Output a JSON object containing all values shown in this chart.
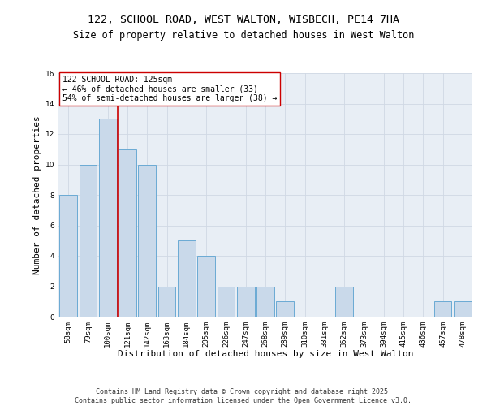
{
  "title1": "122, SCHOOL ROAD, WEST WALTON, WISBECH, PE14 7HA",
  "title2": "Size of property relative to detached houses in West Walton",
  "xlabel": "Distribution of detached houses by size in West Walton",
  "ylabel": "Number of detached properties",
  "bar_color": "#c9d9ea",
  "bar_edge_color": "#6aaad4",
  "grid_color": "#d0d8e4",
  "background_color": "#e8eef5",
  "categories": [
    "58sqm",
    "79sqm",
    "100sqm",
    "121sqm",
    "142sqm",
    "163sqm",
    "184sqm",
    "205sqm",
    "226sqm",
    "247sqm",
    "268sqm",
    "289sqm",
    "310sqm",
    "331sqm",
    "352sqm",
    "373sqm",
    "394sqm",
    "415sqm",
    "436sqm",
    "457sqm",
    "478sqm"
  ],
  "values": [
    8,
    10,
    13,
    11,
    10,
    2,
    5,
    4,
    2,
    2,
    2,
    1,
    0,
    0,
    2,
    0,
    0,
    0,
    0,
    1,
    1
  ],
  "vline_color": "#cc0000",
  "annotation_text": "122 SCHOOL ROAD: 125sqm\n← 46% of detached houses are smaller (33)\n54% of semi-detached houses are larger (38) →",
  "annotation_box_color": "#ffffff",
  "annotation_box_edge": "#cc0000",
  "ylim": [
    0,
    16
  ],
  "yticks": [
    0,
    2,
    4,
    6,
    8,
    10,
    12,
    14,
    16
  ],
  "footnote": "Contains HM Land Registry data © Crown copyright and database right 2025.\nContains public sector information licensed under the Open Government Licence v3.0.",
  "title_fontsize": 9.5,
  "subtitle_fontsize": 8.5,
  "axis_label_fontsize": 8,
  "tick_fontsize": 6.5,
  "annotation_fontsize": 7,
  "footnote_fontsize": 6
}
